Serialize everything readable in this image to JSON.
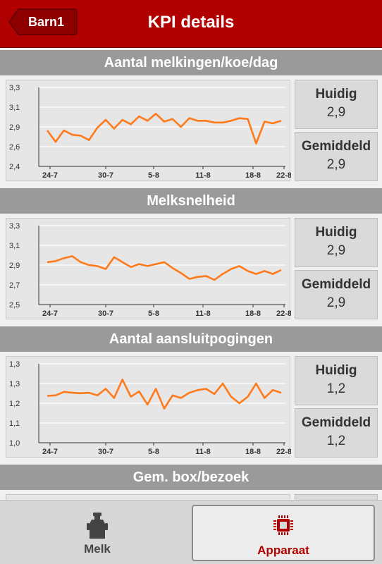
{
  "header": {
    "back_label": "Barn1",
    "title": "KPI details"
  },
  "colors": {
    "header_bg": "#b00000",
    "series": "#ff7a1a",
    "section_bar": "#9a9a9a"
  },
  "kpis": [
    {
      "title": "Aantal melkingen/koe/dag",
      "current_label": "Huidig",
      "current_value": "2,9",
      "average_label": "Gemiddeld",
      "average_value": "2,9",
      "chart_data": {
        "type": "line",
        "y_ticks": [
          "3,3",
          "3,1",
          "2,9",
          "2,6",
          "2,4"
        ],
        "x_ticks": [
          "24-7",
          "30-7",
          "5-8",
          "11-8",
          "18-8",
          "22-8"
        ],
        "ylim": [
          2.4,
          3.3
        ],
        "values": [
          2.81,
          2.68,
          2.81,
          2.76,
          2.75,
          2.7,
          2.84,
          2.93,
          2.83,
          2.93,
          2.88,
          2.97,
          2.92,
          3.0,
          2.91,
          2.94,
          2.85,
          2.95,
          2.92,
          2.92,
          2.9,
          2.9,
          2.92,
          2.95,
          2.94,
          2.66,
          2.91,
          2.89,
          2.92
        ]
      }
    },
    {
      "title": "Melksnelheid",
      "current_label": "Huidig",
      "current_value": "2,9",
      "average_label": "Gemiddeld",
      "average_value": "2,9",
      "chart_data": {
        "type": "line",
        "y_ticks": [
          "3,3",
          "3,1",
          "2,9",
          "2,7",
          "2,5"
        ],
        "x_ticks": [
          "24-7",
          "30-7",
          "5-8",
          "11-8",
          "18-8",
          "22-8"
        ],
        "ylim": [
          2.5,
          3.3
        ],
        "values": [
          2.93,
          2.94,
          2.97,
          2.99,
          2.93,
          2.9,
          2.89,
          2.86,
          2.98,
          2.93,
          2.88,
          2.91,
          2.89,
          2.91,
          2.93,
          2.87,
          2.82,
          2.76,
          2.78,
          2.79,
          2.75,
          2.81,
          2.86,
          2.89,
          2.84,
          2.81,
          2.84,
          2.81,
          2.85
        ]
      }
    },
    {
      "title": "Aantal aansluitpogingen",
      "current_label": "Huidig",
      "current_value": "1,2",
      "average_label": "Gemiddeld",
      "average_value": "1,2",
      "chart_data": {
        "type": "line",
        "y_ticks": [
          "1,3",
          "1,3",
          "1,2",
          "1,1",
          "1,0"
        ],
        "x_ticks": [
          "24-7",
          "30-7",
          "5-8",
          "11-8",
          "18-8",
          "22-8"
        ],
        "ylim": [
          1.0,
          1.3
        ],
        "values": [
          1.178,
          1.18,
          1.193,
          1.19,
          1.188,
          1.19,
          1.18,
          1.205,
          1.17,
          1.24,
          1.175,
          1.195,
          1.145,
          1.205,
          1.13,
          1.18,
          1.17,
          1.19,
          1.2,
          1.205,
          1.185,
          1.225,
          1.175,
          1.15,
          1.175,
          1.225,
          1.17,
          1.2,
          1.19
        ]
      }
    },
    {
      "title": "Gem. box/bezoek"
    }
  ],
  "footer": {
    "tab_melk": "Melk",
    "tab_apparaat": "Apparaat"
  }
}
